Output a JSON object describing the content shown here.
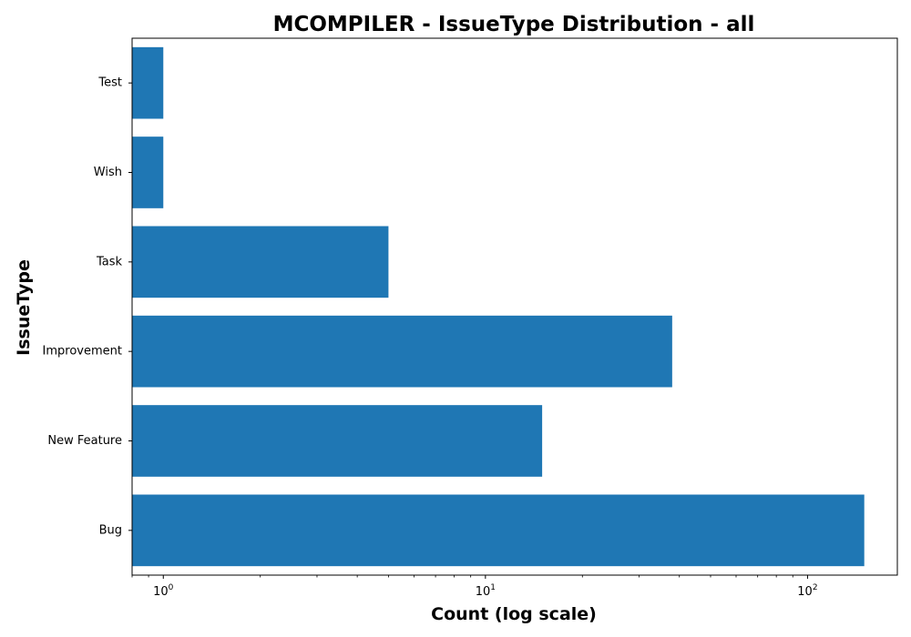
{
  "chart_data": {
    "type": "bar",
    "orientation": "horizontal",
    "title": "MCOMPILER - IssueType Distribution - all",
    "xlabel": "Count (log scale)",
    "ylabel": "IssueType",
    "x_scale": "log",
    "xlim": [
      0.8,
      190
    ],
    "x_ticks": [
      {
        "base": "10",
        "exp": "0",
        "value": 1
      },
      {
        "base": "10",
        "exp": "1",
        "value": 10
      },
      {
        "base": "10",
        "exp": "2",
        "value": 100
      }
    ],
    "categories": [
      "Test",
      "Wish",
      "Task",
      "Improvement",
      "New Feature",
      "Bug"
    ],
    "values": [
      1,
      1,
      5,
      38,
      15,
      150
    ],
    "bar_color": "#1f77b4",
    "grid": false
  }
}
